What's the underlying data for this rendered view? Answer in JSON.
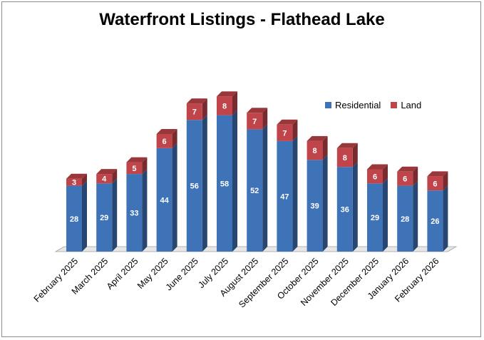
{
  "chart_data": {
    "type": "bar",
    "stacked": true,
    "title": "Waterfront Listings - Flathead Lake",
    "xlabel": "",
    "ylabel": "",
    "ylim": [
      0,
      72
    ],
    "grid": false,
    "legend_position": "top-right",
    "categories": [
      "February 2025",
      "March 2025",
      "April 2025",
      "May 2025",
      "June 2025",
      "July 2025",
      "August 2025",
      "September 2025",
      "October 2025",
      "November 2025",
      "December 2025",
      "January 2026",
      "February 2026"
    ],
    "series": [
      {
        "name": "Residential",
        "color": "#3f73b8",
        "values": [
          28,
          29,
          33,
          44,
          56,
          58,
          52,
          47,
          39,
          36,
          29,
          28,
          26
        ]
      },
      {
        "name": "Land",
        "color": "#c0454a",
        "values": [
          3,
          4,
          5,
          6,
          7,
          8,
          7,
          7,
          8,
          8,
          6,
          6,
          6
        ]
      }
    ]
  }
}
